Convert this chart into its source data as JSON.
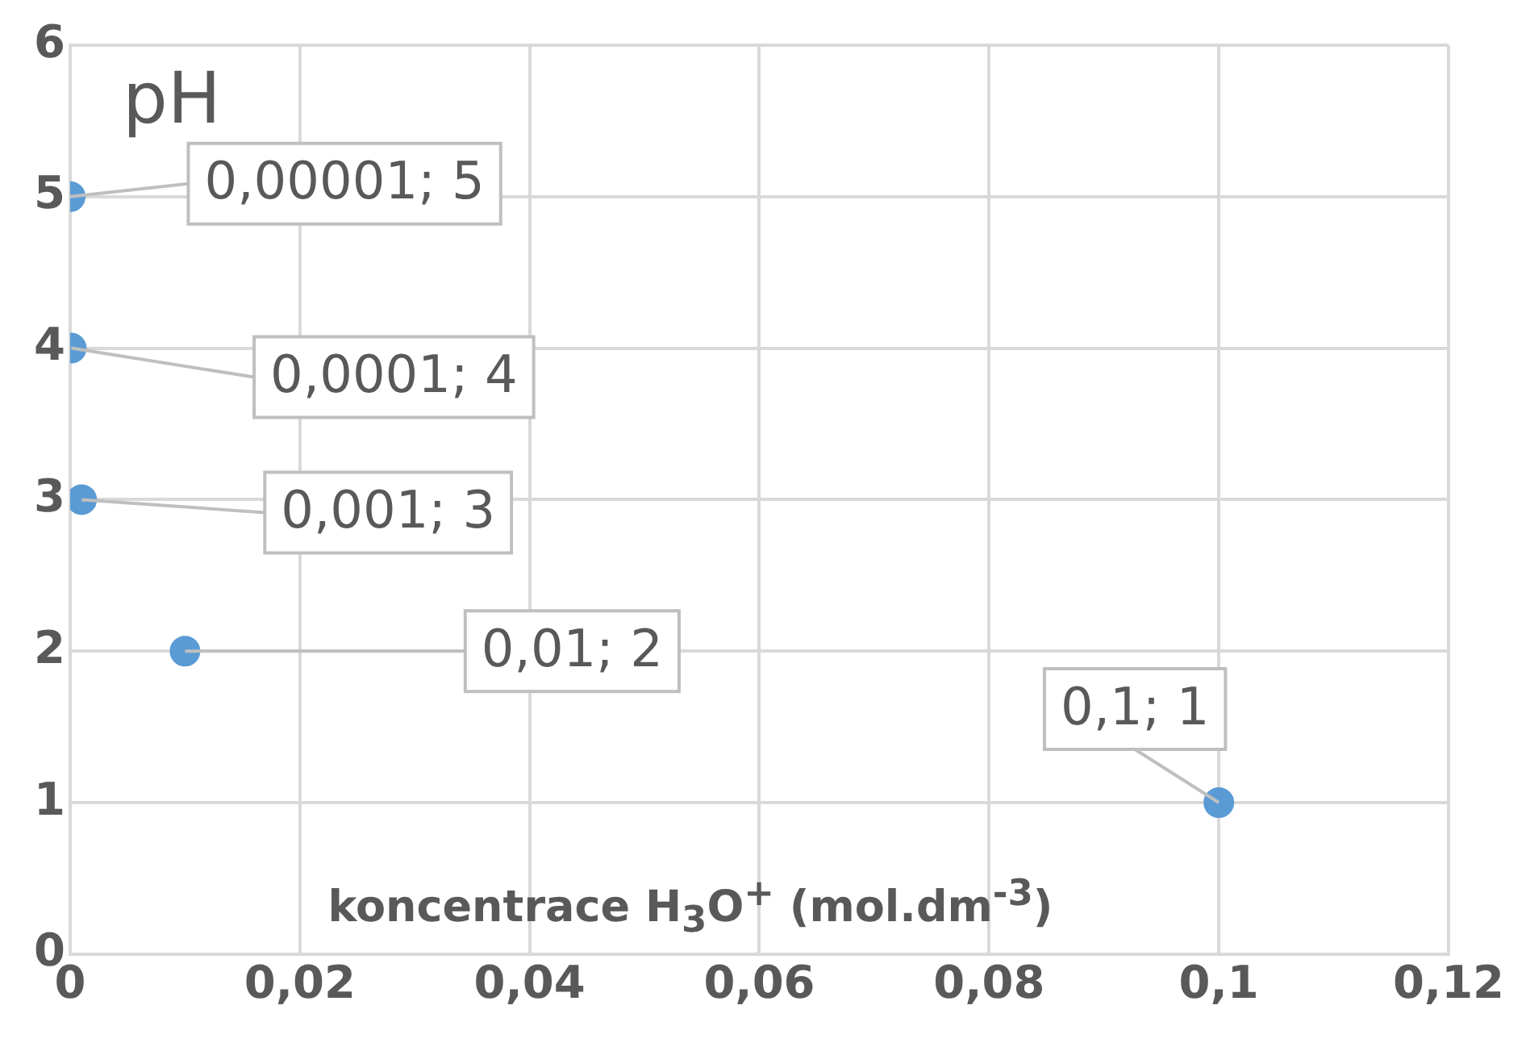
{
  "chart_data": {
    "type": "scatter",
    "xlabel": "koncentrace H$_{3}$O$^{+}$ (mol.dm$^{-3}$)",
    "ylabel": "pH",
    "x": [
      1e-05,
      0.0001,
      0.001,
      0.01,
      0.1
    ],
    "values": [
      5,
      4,
      3,
      2,
      1
    ],
    "color": "#5b9bd5",
    "value_labels": [
      "0,00001; 5",
      "0,0001; 4",
      "0,001; 3",
      "0,01; 2",
      "0,1; 1"
    ],
    "xlim": [
      0,
      0.12
    ],
    "xticks": [
      0,
      {
        "value": 0.02,
        "label": "0,02"
      },
      {
        "value": 0.04,
        "label": "0,04"
      },
      {
        "value": 0.06,
        "label": "0,06"
      },
      {
        "value": 0.08,
        "label": "0,08"
      },
      {
        "value": 0.1,
        "label": "0,1"
      },
      {
        "value": 0.12,
        "label": "0,12"
      }
    ],
    "ylim": [
      0,
      6
    ],
    "yticks": [
      0,
      1,
      2,
      3,
      4,
      5,
      6
    ],
    "grid": true,
    "marker": "circle"
  }
}
